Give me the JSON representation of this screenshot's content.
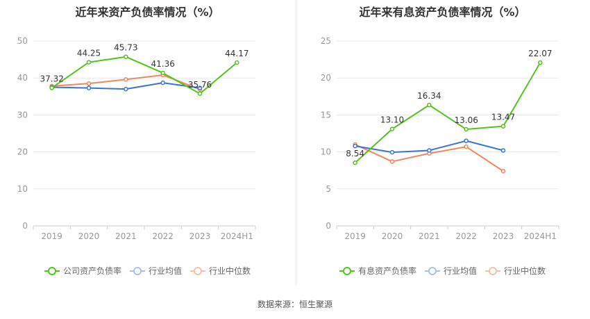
{
  "charts": [
    {
      "title": "近年来资产负债率情况（%）",
      "legend": [
        {
          "name": "公司资产负债率",
          "color": "#52c41a"
        },
        {
          "name": "行业均值",
          "color": "#3b73d6"
        },
        {
          "name": "行业中位数",
          "color": "#f0875e"
        }
      ]
    },
    {
      "title": "近年来有息资产负债率情况（%）",
      "legend": [
        {
          "name": "有息资产负债率",
          "color": "#52c41a"
        },
        {
          "name": "行业均值",
          "color": "#3b73d6"
        },
        {
          "name": "行业中位数",
          "color": "#f0875e"
        }
      ]
    }
  ],
  "source_text": "数据来源：恒生聚源",
  "chart_data": [
    {
      "type": "line",
      "title": "近年来资产负债率情况（%）",
      "categories": [
        "2019",
        "2020",
        "2021",
        "2022",
        "2023",
        "2024H1"
      ],
      "ylim": [
        0,
        50
      ],
      "yticks": [
        0,
        10,
        20,
        30,
        40,
        50
      ],
      "series": [
        {
          "name": "公司资产负债率",
          "color": "#52c41a",
          "values": [
            37.32,
            44.25,
            45.73,
            41.36,
            35.76,
            44.17
          ],
          "labels": [
            "37.32",
            "44.25",
            "45.73",
            "41.36",
            "35.76",
            "44.17"
          ]
        },
        {
          "name": "行业均值",
          "color": "#3b73d6",
          "values": [
            37.5,
            37.3,
            37.0,
            38.7,
            37.3,
            null
          ]
        },
        {
          "name": "行业中位数",
          "color": "#f0875e",
          "values": [
            37.8,
            38.5,
            39.6,
            40.8,
            36.9,
            null
          ]
        }
      ]
    },
    {
      "type": "line",
      "title": "近年来有息资产负债率情况（%）",
      "categories": [
        "2019",
        "2020",
        "2021",
        "2022",
        "2023",
        "2024H1"
      ],
      "ylim": [
        0,
        25
      ],
      "yticks": [
        0,
        5,
        10,
        15,
        20,
        25
      ],
      "series": [
        {
          "name": "有息资产负债率",
          "color": "#52c41a",
          "values": [
            8.54,
            13.1,
            16.34,
            13.06,
            13.47,
            22.07
          ],
          "labels": [
            "8.54",
            "13.10",
            "16.34",
            "13.06",
            "13.47",
            "22.07"
          ]
        },
        {
          "name": "行业均值",
          "color": "#3b73d6",
          "values": [
            10.8,
            9.95,
            10.2,
            11.5,
            10.2,
            null
          ]
        },
        {
          "name": "行业中位数",
          "color": "#f0875e",
          "values": [
            11.0,
            8.7,
            9.8,
            10.7,
            7.4,
            null
          ]
        }
      ]
    }
  ]
}
